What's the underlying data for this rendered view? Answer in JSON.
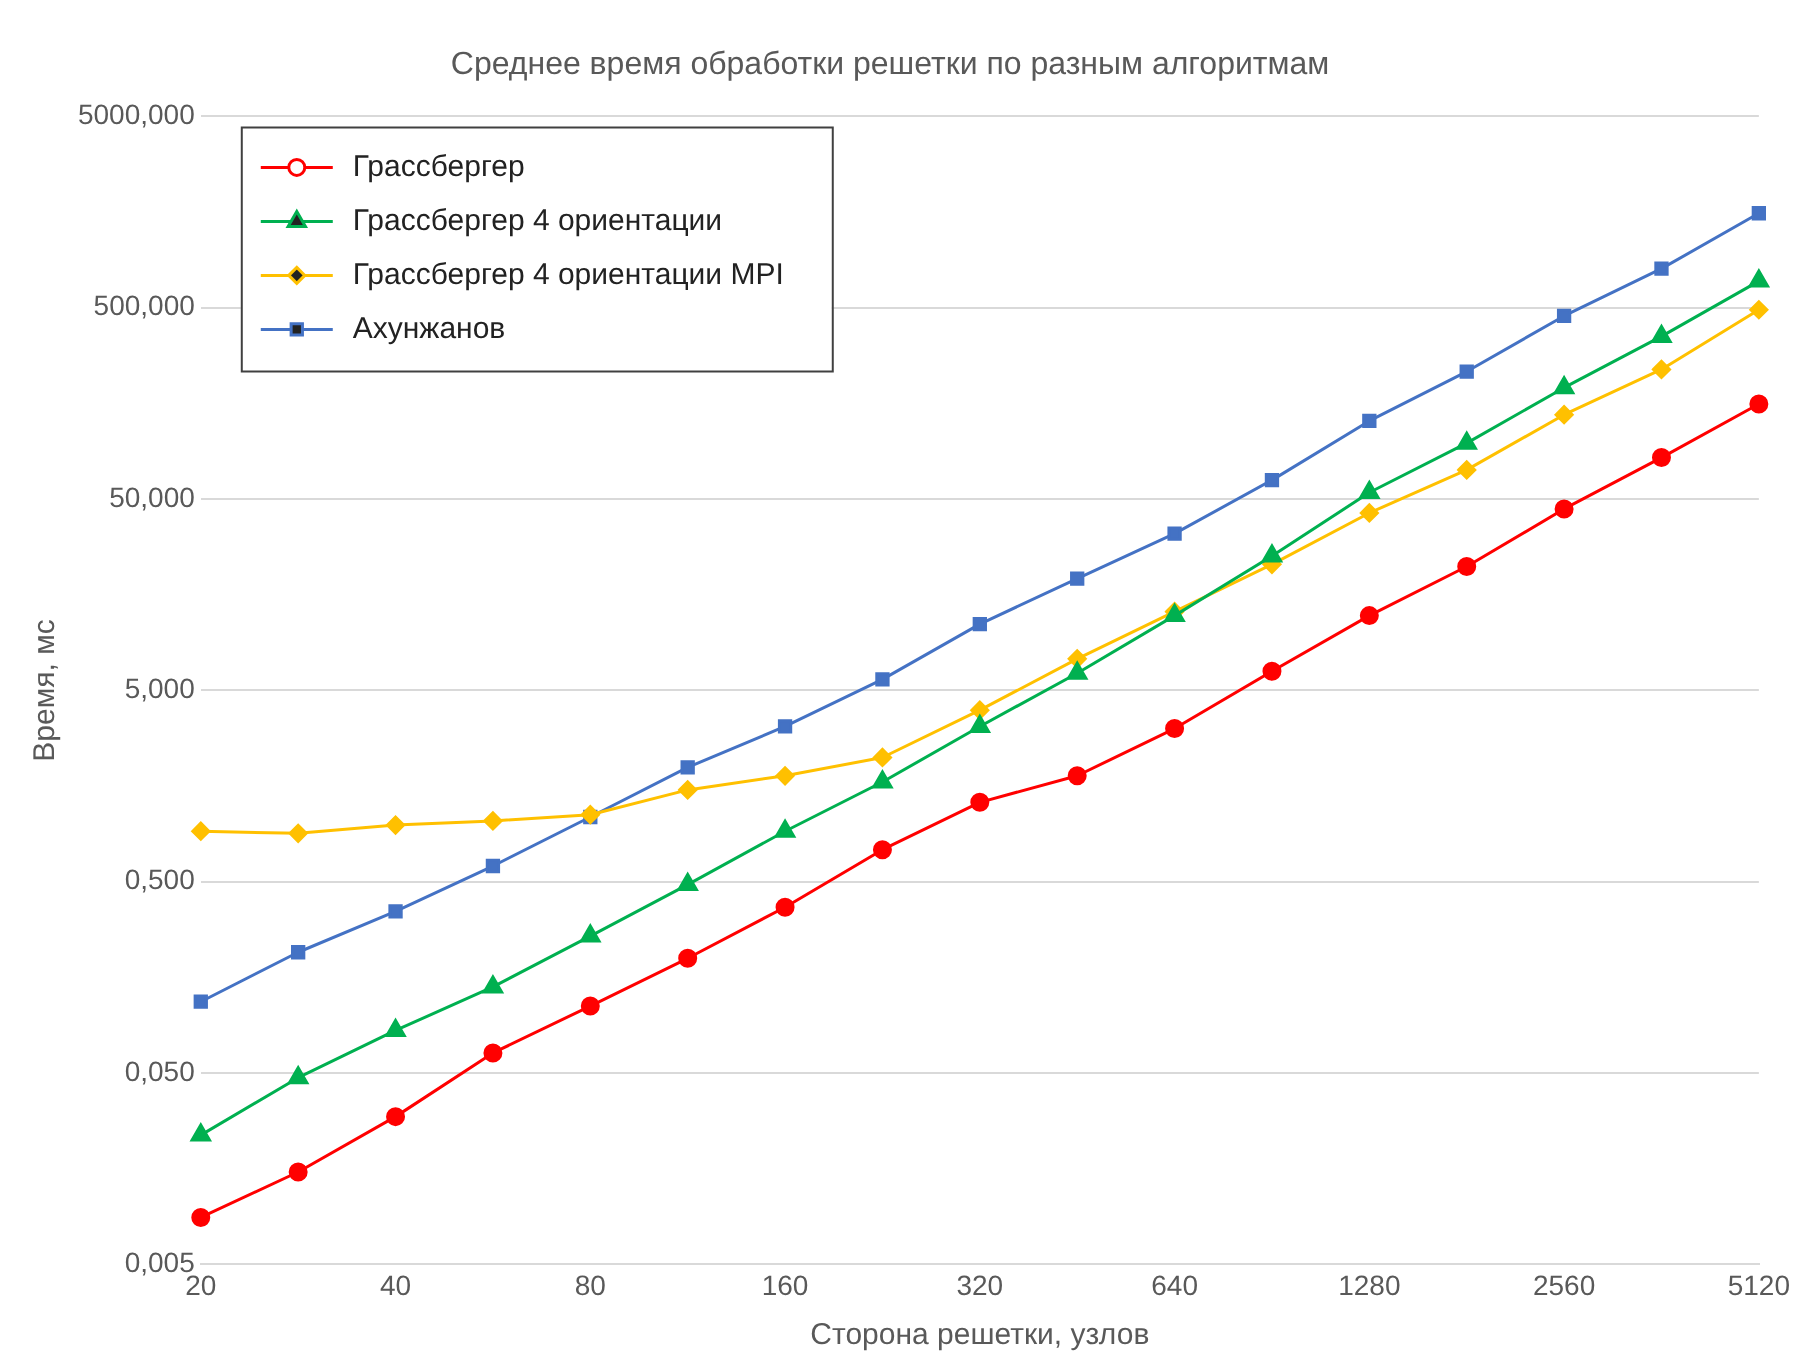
{
  "chart_data": {
    "type": "line",
    "title": "Среднее время обработки решетки по разным алгоритмам",
    "xlabel": "Сторона решетки, узлов",
    "ylabel": "Время, мс",
    "categories": [
      "20",
      null,
      "40",
      null,
      "80",
      null,
      "160",
      null,
      "320",
      null,
      "640",
      null,
      "1280",
      null,
      "2560",
      null,
      "5120"
    ],
    "series": [
      {
        "name": "Грассбергер",
        "color": "#ff0000",
        "marker": "circle",
        "values": [
          0.0088,
          0.0152,
          0.0296,
          0.0637,
          0.112,
          0.199,
          0.368,
          0.735,
          1.3,
          1.79,
          3.16,
          6.3,
          12.3,
          22.2,
          44.4,
          82.4,
          157
        ]
      },
      {
        "name": "Грассбергер 4 ориентации",
        "color": "#00b050",
        "marker": "triangle",
        "values": [
          0.0237,
          0.0473,
          0.0835,
          0.141,
          0.26,
          0.483,
          0.918,
          1.66,
          3.24,
          6.15,
          12.3,
          25.2,
          54.1,
          98,
          191,
          354,
          689
        ]
      },
      {
        "name": "Грассбергер 4 ориентации MPI",
        "color": "#ffc000",
        "marker": "diamond",
        "values": [
          0.918,
          0.895,
          0.989,
          1.04,
          1.12,
          1.51,
          1.79,
          2.23,
          3.94,
          7.31,
          12.9,
          22.8,
          42.3,
          71,
          138,
          238,
          488
        ]
      },
      {
        "name": "Ахунжанов",
        "color": "#4472c4",
        "marker": "square",
        "values": [
          0.118,
          0.214,
          0.35,
          0.604,
          1.09,
          1.98,
          3.24,
          5.71,
          11.1,
          19.2,
          33,
          62.8,
          128,
          232,
          453,
          800,
          1559
        ]
      }
    ],
    "log": "y",
    "ylim": [
      0.005,
      5000
    ],
    "yticks": [
      {
        "value": 0.005,
        "label": "0,005"
      },
      {
        "value": 0.05,
        "label": "0,050"
      },
      {
        "value": 0.5,
        "label": "0,500"
      },
      {
        "value": 5,
        "label": "5,000"
      },
      {
        "value": 50,
        "label": "50,000"
      },
      {
        "value": 500,
        "label": "500,000"
      },
      {
        "value": 5000,
        "label": "5000,000"
      }
    ],
    "grid": "y",
    "legend": "top left",
    "line_style": "solid"
  }
}
